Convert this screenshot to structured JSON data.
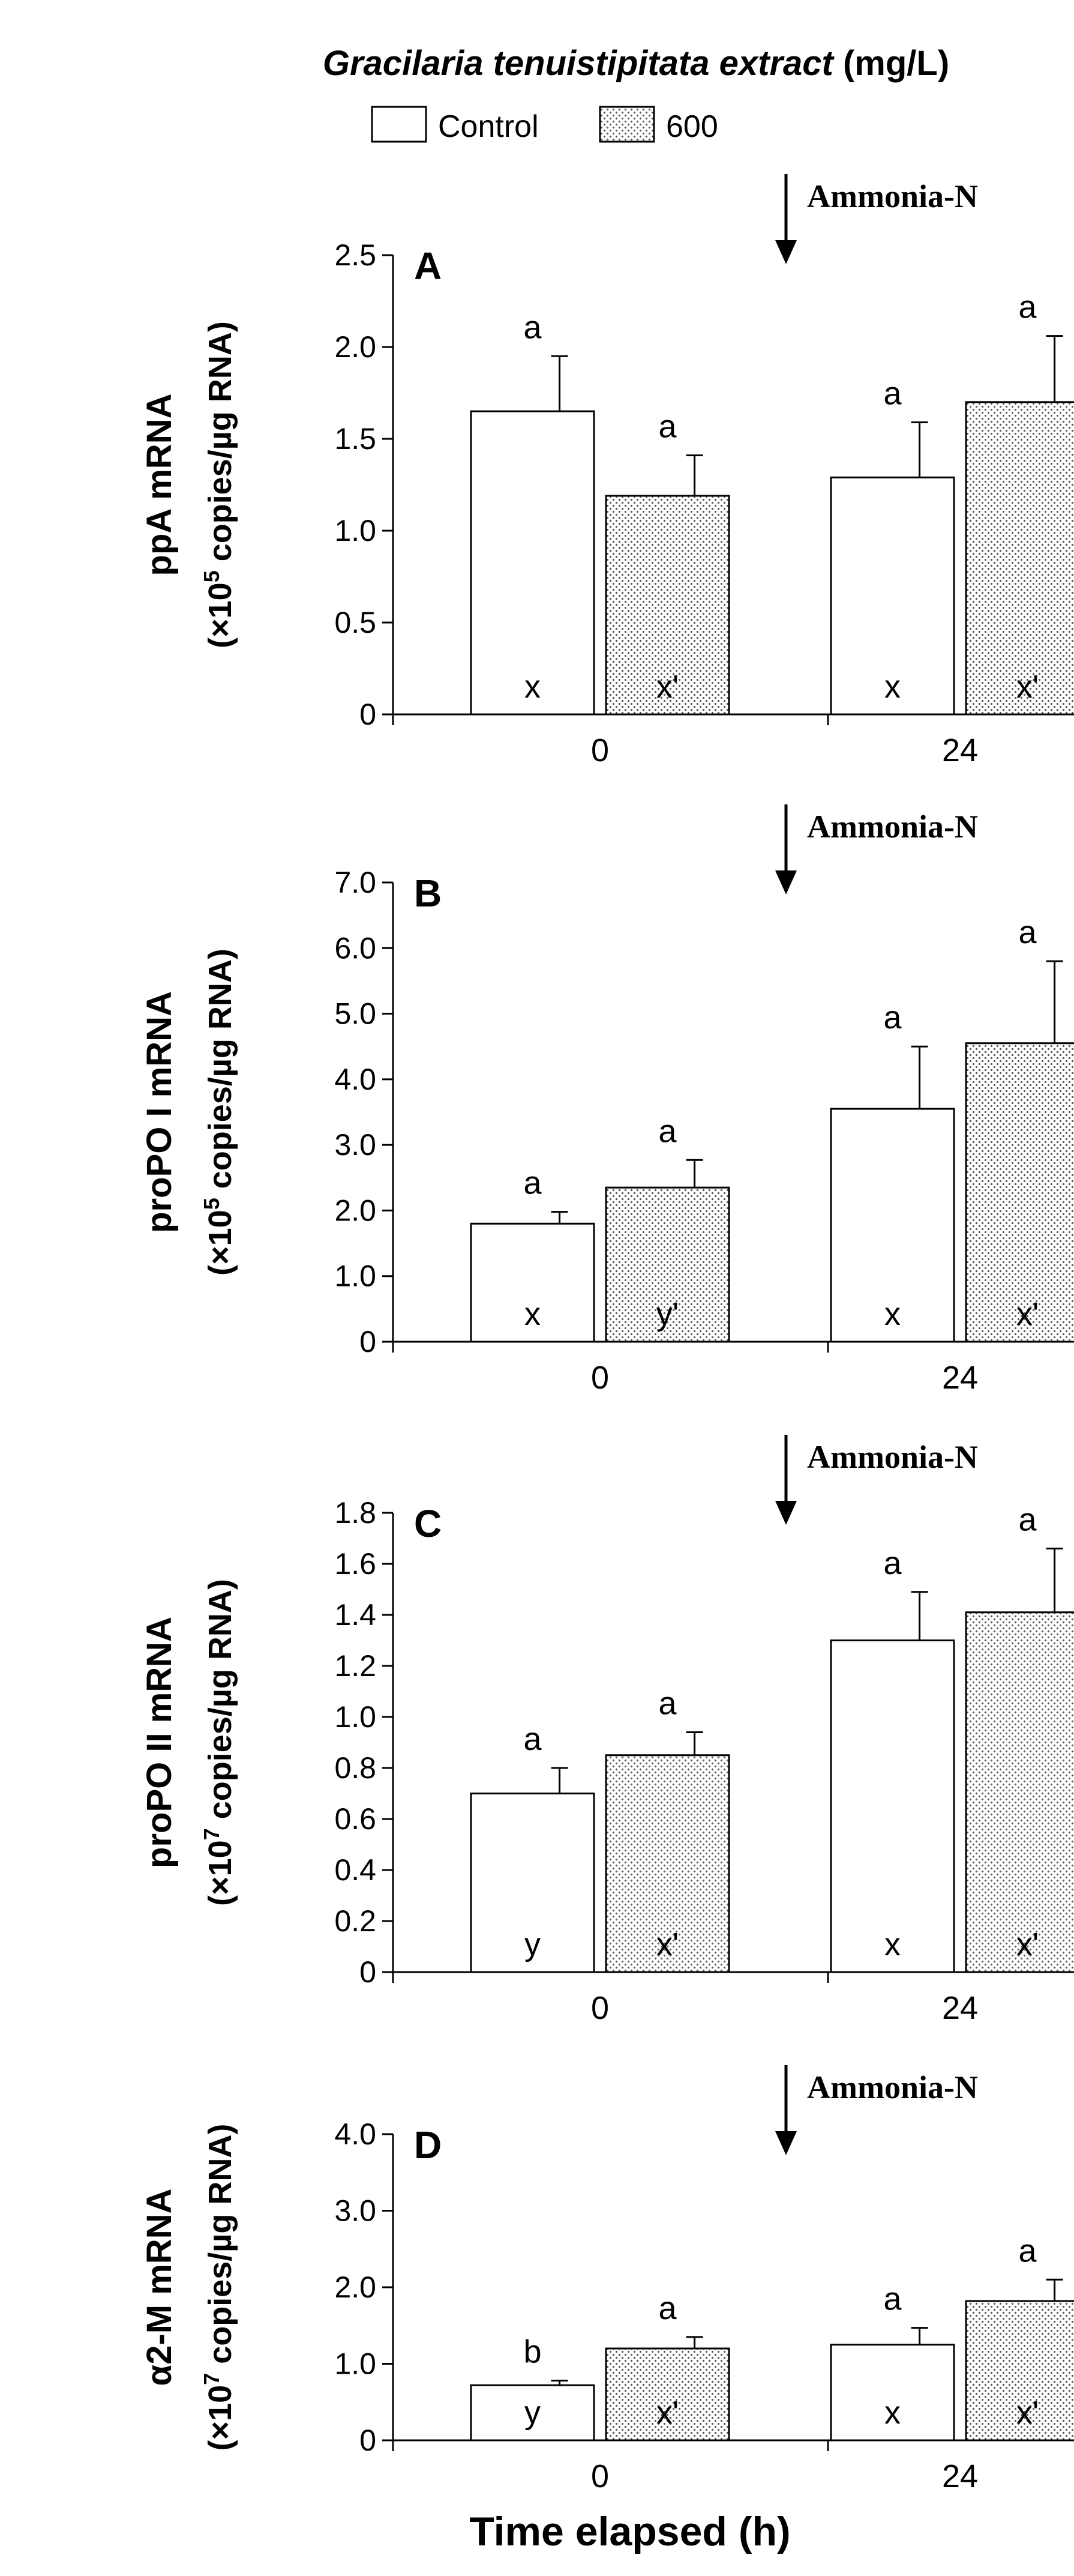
{
  "figure": {
    "title_species": "Gracilaria tenuistipitata extract",
    "title_unit": " (mg/L)",
    "xlabel": "Time elapsed (h)",
    "legend": [
      {
        "name": "Control",
        "pattern": "open"
      },
      {
        "name": "600",
        "pattern": "dotted"
      }
    ],
    "annotation": "Ammonia-N"
  },
  "chart_data": [
    {
      "type": "bar",
      "panel": "A",
      "ylabel_line1": "ppA mRNA",
      "ylabel_line2_prefix": "(×10",
      "ylabel_exp": "5",
      "ylabel_line2_suffix": " copies/µg RNA)",
      "ylim": [
        0,
        2.5
      ],
      "yticks": [
        "0",
        "0.5",
        "1.0",
        "1.5",
        "2.0",
        "2.5"
      ],
      "categories": [
        "0",
        "24"
      ],
      "series": [
        {
          "name": "Control",
          "values": [
            1.65,
            1.29
          ],
          "errors": [
            0.3,
            0.3
          ],
          "top_letters": [
            "a",
            "a"
          ],
          "inner_letters": [
            "x",
            "x"
          ]
        },
        {
          "name": "600",
          "values": [
            1.19,
            1.7
          ],
          "errors": [
            0.22,
            0.36
          ],
          "top_letters": [
            "a",
            "a"
          ],
          "inner_letters": [
            "x'",
            "x'"
          ]
        }
      ]
    },
    {
      "type": "bar",
      "panel": "B",
      "ylabel_line1": "proPO I mRNA",
      "ylabel_line2_prefix": "(×10",
      "ylabel_exp": "5",
      "ylabel_line2_suffix": " copies/µg RNA)",
      "ylim": [
        0,
        7.0
      ],
      "yticks": [
        "0",
        "1.0",
        "2.0",
        "3.0",
        "4.0",
        "5.0",
        "6.0",
        "7.0"
      ],
      "categories": [
        "0",
        "24"
      ],
      "series": [
        {
          "name": "Control",
          "values": [
            1.8,
            3.55
          ],
          "errors": [
            0.18,
            0.95
          ],
          "top_letters": [
            "a",
            "a"
          ],
          "inner_letters": [
            "x",
            "x"
          ]
        },
        {
          "name": "600",
          "values": [
            2.35,
            4.55
          ],
          "errors": [
            0.42,
            1.25
          ],
          "top_letters": [
            "a",
            "a"
          ],
          "inner_letters": [
            "y'",
            "x'"
          ]
        }
      ]
    },
    {
      "type": "bar",
      "panel": "C",
      "ylabel_line1": "proPO II mRNA",
      "ylabel_line2_prefix": "(×10",
      "ylabel_exp": "7",
      "ylabel_line2_suffix": " copies/µg RNA)",
      "ylim": [
        0,
        1.8
      ],
      "yticks": [
        "0",
        "0.2",
        "0.4",
        "0.6",
        "0.8",
        "1.0",
        "1.2",
        "1.4",
        "1.6",
        "1.8"
      ],
      "categories": [
        "0",
        "24"
      ],
      "series": [
        {
          "name": "Control",
          "values": [
            0.7,
            1.3
          ],
          "errors": [
            0.1,
            0.19
          ],
          "top_letters": [
            "a",
            "a"
          ],
          "inner_letters": [
            "y",
            "x"
          ]
        },
        {
          "name": "600",
          "values": [
            0.85,
            1.41
          ],
          "errors": [
            0.09,
            0.25
          ],
          "top_letters": [
            "a",
            "a"
          ],
          "inner_letters": [
            "x'",
            "x'"
          ]
        }
      ]
    },
    {
      "type": "bar",
      "panel": "D",
      "ylabel_line1": "α2-M mRNA",
      "ylabel_line2_prefix": "(×10",
      "ylabel_exp": "7",
      "ylabel_line2_suffix": " copies/µg RNA)",
      "ylim": [
        0,
        4.0
      ],
      "yticks": [
        "0",
        "1.0",
        "2.0",
        "3.0",
        "4.0"
      ],
      "categories": [
        "0",
        "24"
      ],
      "series": [
        {
          "name": "Control",
          "values": [
            0.72,
            1.25
          ],
          "errors": [
            0.06,
            0.22
          ],
          "top_letters": [
            "b",
            "a"
          ],
          "inner_letters": [
            "y",
            "x"
          ]
        },
        {
          "name": "600",
          "values": [
            1.2,
            1.82
          ],
          "errors": [
            0.15,
            0.28
          ],
          "top_letters": [
            "a",
            "a"
          ],
          "inner_letters": [
            "x'",
            "x'"
          ]
        }
      ]
    }
  ]
}
